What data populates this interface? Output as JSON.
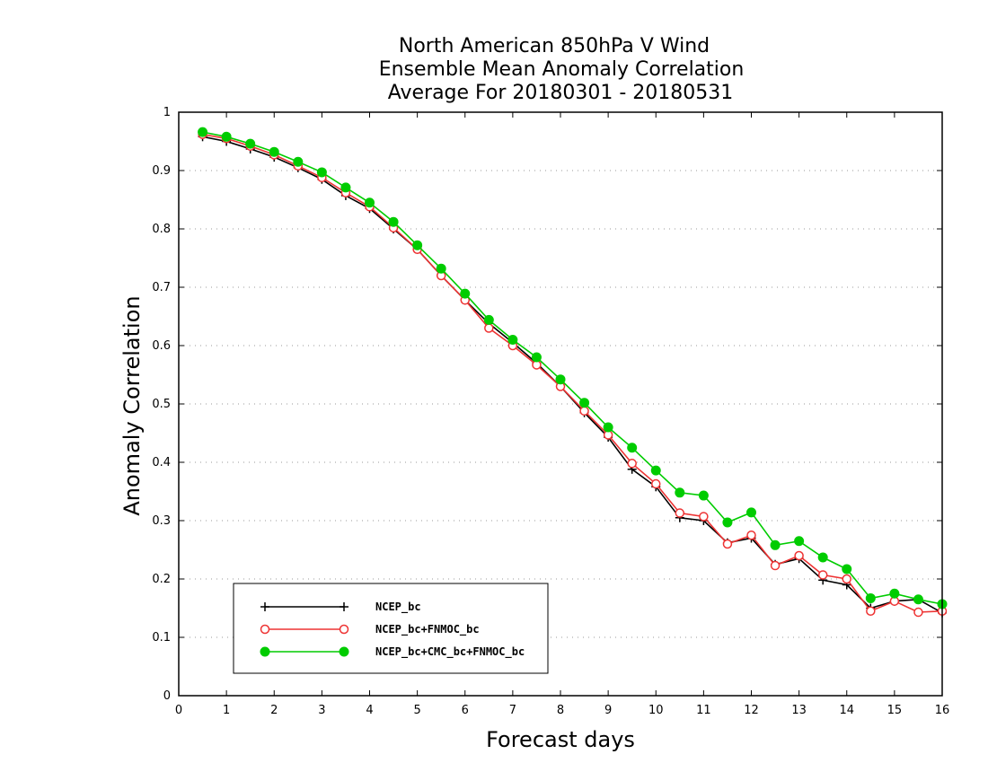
{
  "chart_data": {
    "type": "line",
    "title": [
      "North American 850hPa V Wind",
      "Ensemble Mean Anomaly Correlation",
      "Average For 20180301 - 20180531"
    ],
    "xlabel": "Forecast days",
    "ylabel": "Anomaly Correlation",
    "xlim": [
      0,
      16
    ],
    "ylim": [
      0,
      1
    ],
    "x_ticks": [
      0,
      1,
      2,
      3,
      4,
      5,
      6,
      7,
      8,
      9,
      10,
      11,
      12,
      13,
      14,
      15,
      16
    ],
    "y_ticks": [
      0,
      0.1,
      0.2,
      0.3,
      0.4,
      0.5,
      0.6,
      0.7,
      0.8,
      0.9,
      1
    ],
    "y_tick_labels": [
      "0",
      "0.1",
      "0.2",
      "0.3",
      "0.4",
      "0.5",
      "0.6",
      "0.7",
      "0.8",
      "0.9",
      "1"
    ],
    "grid": "horizontal dotted",
    "legend_position": "bottom-left",
    "x": [
      0.5,
      1,
      1.5,
      2,
      2.5,
      3,
      3.5,
      4,
      4.5,
      5,
      5.5,
      6,
      6.5,
      7,
      7.5,
      8,
      8.5,
      9,
      9.5,
      10,
      10.5,
      11,
      11.5,
      12,
      12.5,
      13,
      13.5,
      14,
      14.5,
      15,
      15.5,
      16
    ],
    "series": [
      {
        "name": "NCEP_bc",
        "color": "#000000",
        "marker": "plus",
        "values": [
          0.958,
          0.95,
          0.937,
          0.923,
          0.905,
          0.885,
          0.857,
          0.835,
          0.8,
          0.765,
          0.72,
          0.678,
          0.638,
          0.605,
          0.57,
          0.53,
          0.485,
          0.443,
          0.388,
          0.358,
          0.305,
          0.3,
          0.262,
          0.27,
          0.225,
          0.235,
          0.198,
          0.19,
          0.15,
          0.162,
          0.165,
          0.142
        ]
      },
      {
        "name": "NCEP_bc+FNMOC_bc",
        "color": "#ee3333",
        "marker": "open-circle",
        "values": [
          0.962,
          0.955,
          0.942,
          0.927,
          0.908,
          0.888,
          0.862,
          0.838,
          0.802,
          0.765,
          0.72,
          0.678,
          0.63,
          0.6,
          0.567,
          0.53,
          0.488,
          0.447,
          0.398,
          0.363,
          0.313,
          0.307,
          0.26,
          0.275,
          0.223,
          0.24,
          0.207,
          0.2,
          0.145,
          0.162,
          0.143,
          0.145
        ]
      },
      {
        "name": "NCEP_bc+CMC_bc+FNMOC_bc",
        "color": "#00cc00",
        "marker": "filled-circle",
        "values": [
          0.966,
          0.958,
          0.946,
          0.932,
          0.915,
          0.897,
          0.871,
          0.845,
          0.812,
          0.772,
          0.732,
          0.689,
          0.644,
          0.61,
          0.58,
          0.542,
          0.502,
          0.46,
          0.425,
          0.386,
          0.348,
          0.343,
          0.297,
          0.314,
          0.258,
          0.265,
          0.237,
          0.217,
          0.167,
          0.175,
          0.165,
          0.157
        ]
      }
    ]
  }
}
